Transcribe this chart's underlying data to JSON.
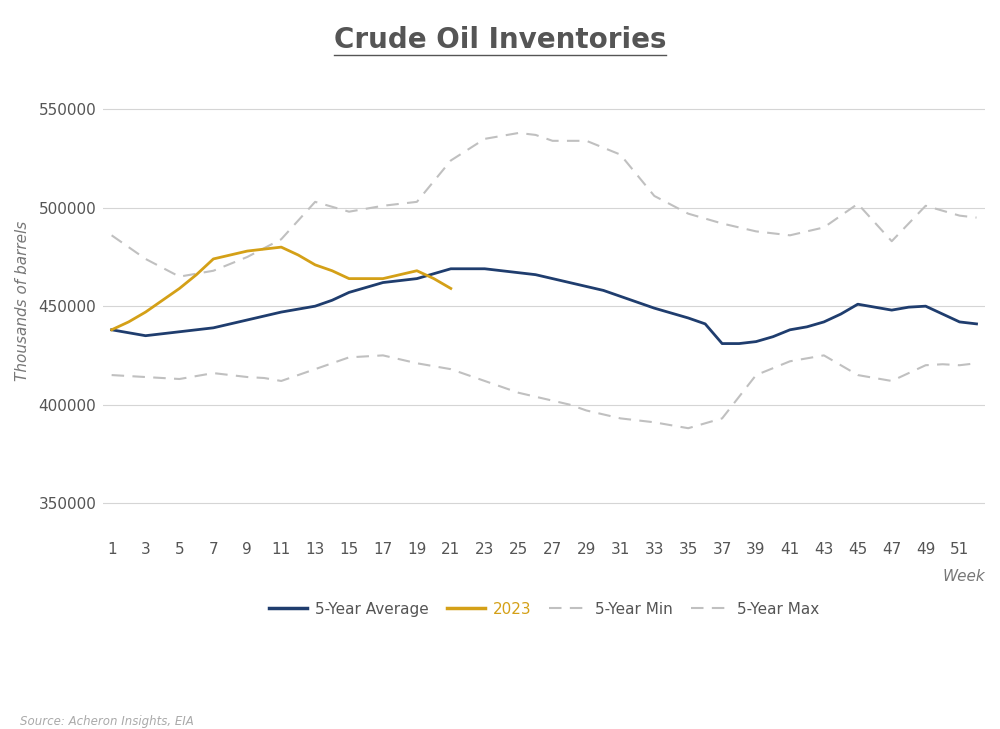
{
  "title": "Crude Oil Inventories",
  "ylabel": "Thousands of barrels",
  "xlabel": "Week",
  "source": "Source: Acheron Insights, EIA",
  "ylim": [
    333000,
    572000
  ],
  "yticks": [
    350000,
    400000,
    450000,
    500000,
    550000
  ],
  "weeks": [
    1,
    2,
    3,
    4,
    5,
    6,
    7,
    8,
    9,
    10,
    11,
    12,
    13,
    14,
    15,
    16,
    17,
    18,
    19,
    20,
    21,
    22,
    23,
    24,
    25,
    26,
    27,
    28,
    29,
    30,
    31,
    32,
    33,
    34,
    35,
    36,
    37,
    38,
    39,
    40,
    41,
    42,
    43,
    44,
    45,
    46,
    47,
    48,
    49,
    50,
    51,
    52
  ],
  "avg_5yr": [
    438000,
    436500,
    435000,
    436000,
    437000,
    438000,
    439000,
    441000,
    443000,
    445000,
    447000,
    448500,
    450000,
    453000,
    457000,
    459500,
    462000,
    463000,
    464000,
    466500,
    469000,
    469000,
    469000,
    468000,
    467000,
    466000,
    464000,
    462000,
    460000,
    458000,
    455000,
    452000,
    449000,
    446500,
    444000,
    441000,
    431000,
    431000,
    432000,
    434500,
    438000,
    439500,
    442000,
    446000,
    451000,
    449500,
    448000,
    449500,
    450000,
    446000,
    442000,
    441000
  ],
  "yr2023": [
    438000,
    442000,
    447000,
    453000,
    459000,
    466000,
    474000,
    476000,
    478000,
    479000,
    480000,
    476000,
    471000,
    468000,
    464000,
    464000,
    464000,
    466000,
    468000,
    464000,
    459000,
    null,
    null,
    null,
    null,
    null,
    null,
    null,
    null,
    null,
    null,
    null,
    null,
    null,
    null,
    null,
    null,
    null,
    null,
    null,
    null,
    null,
    null,
    null,
    null,
    null,
    null,
    null,
    null,
    null,
    null,
    null
  ],
  "min_5yr": [
    415000,
    414500,
    414000,
    413500,
    413000,
    414500,
    416000,
    415000,
    414000,
    413500,
    412000,
    415000,
    418000,
    421000,
    424000,
    424500,
    425000,
    423000,
    421000,
    419500,
    418000,
    415000,
    412000,
    409000,
    406000,
    404000,
    402000,
    400000,
    397000,
    395000,
    393000,
    392000,
    391000,
    389500,
    388000,
    390500,
    393000,
    404000,
    415000,
    418500,
    422000,
    423500,
    425000,
    420000,
    415000,
    413500,
    412000,
    416000,
    420000,
    420500,
    420000,
    421000
  ],
  "max_5yr": [
    486000,
    480000,
    474000,
    469500,
    465000,
    466500,
    468000,
    471500,
    475000,
    479500,
    484000,
    493500,
    503000,
    500500,
    498000,
    499500,
    501000,
    502000,
    503000,
    513500,
    524000,
    529500,
    535000,
    536500,
    538000,
    537000,
    534000,
    534000,
    534000,
    530500,
    527000,
    516500,
    506000,
    501500,
    497000,
    494500,
    492000,
    490000,
    488000,
    487000,
    486000,
    488000,
    490000,
    496000,
    502000,
    492500,
    483000,
    492000,
    501000,
    498500,
    496000,
    495000
  ],
  "avg_color": "#1f3d6e",
  "yr2023_color": "#d4a017",
  "minmax_color": "#c0c0c0",
  "bg_color": "#ffffff",
  "grid_color": "#d5d5d5",
  "title_fontsize": 20,
  "axis_label_fontsize": 11,
  "tick_fontsize": 11,
  "legend_fontsize": 11,
  "source_fontsize": 8.5
}
